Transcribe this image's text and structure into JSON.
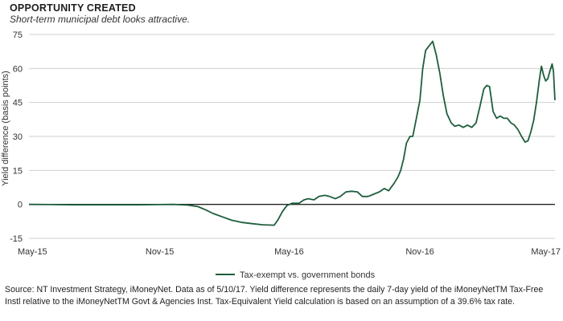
{
  "header": {
    "title": "OPPORTUNITY CREATED",
    "subtitle": "Short-term municipal debt looks attractive."
  },
  "footer": {
    "source": "Source: NT Investment Strategy, iMoneyNet. Data as of 5/10/17. Yield difference represents the daily 7-day yield of the iMoneyNetTM Tax-Free Instl relative to the iMoneyNetTM Govt & Agencies Inst. Tax-Equivalent Yield calculation is based on an assumption of a 39.6% tax rate."
  },
  "colors": {
    "line": "#1e5e3c",
    "grid": "#cfcfcf",
    "zero": "#222222"
  },
  "chart_data": {
    "type": "line",
    "title": "OPPORTUNITY CREATED",
    "subtitle": "Short-term municipal debt looks attractive.",
    "ylabel": "Yield difference (basis points)",
    "xlabel": "",
    "ylim": [
      -15,
      75
    ],
    "yticks": [
      -15,
      0,
      15,
      30,
      45,
      60,
      75
    ],
    "xlim": [
      "2015-05-01",
      "2017-05-10"
    ],
    "xticks": [
      {
        "date": "2015-05-01",
        "label": "May-15"
      },
      {
        "date": "2015-11-01",
        "label": "Nov-15"
      },
      {
        "date": "2016-05-01",
        "label": "May-16"
      },
      {
        "date": "2016-11-01",
        "label": "Nov-16"
      },
      {
        "date": "2017-05-01",
        "label": "May-17"
      }
    ],
    "grid": "horizontal",
    "legend_position": "bottom-center",
    "series": [
      {
        "name": "Tax-exempt vs. government bonds",
        "color": "#1e5e3c",
        "points": [
          [
            "2015-05-01",
            0
          ],
          [
            "2015-06-01",
            -0.1
          ],
          [
            "2015-07-01",
            -0.2
          ],
          [
            "2015-08-01",
            -0.2
          ],
          [
            "2015-09-01",
            -0.2
          ],
          [
            "2015-10-01",
            -0.2
          ],
          [
            "2015-11-01",
            -0.1
          ],
          [
            "2015-11-20",
            0
          ],
          [
            "2015-12-10",
            -0.3
          ],
          [
            "2015-12-25",
            -1
          ],
          [
            "2016-01-05",
            -2.5
          ],
          [
            "2016-01-15",
            -4
          ],
          [
            "2016-01-28",
            -5.5
          ],
          [
            "2016-02-10",
            -7
          ],
          [
            "2016-02-25",
            -8
          ],
          [
            "2016-03-10",
            -8.5
          ],
          [
            "2016-03-25",
            -9
          ],
          [
            "2016-04-10",
            -9.2
          ],
          [
            "2016-04-15",
            -7
          ],
          [
            "2016-04-22",
            -3
          ],
          [
            "2016-04-28",
            -0.5
          ],
          [
            "2016-05-05",
            0.5
          ],
          [
            "2016-05-15",
            0.5
          ],
          [
            "2016-05-22",
            2
          ],
          [
            "2016-05-28",
            2.5
          ],
          [
            "2016-06-05",
            2
          ],
          [
            "2016-06-12",
            3.5
          ],
          [
            "2016-06-20",
            4
          ],
          [
            "2016-06-27",
            3.5
          ],
          [
            "2016-07-05",
            2.5
          ],
          [
            "2016-07-12",
            3.5
          ],
          [
            "2016-07-20",
            5.5
          ],
          [
            "2016-07-28",
            5.8
          ],
          [
            "2016-08-05",
            5.5
          ],
          [
            "2016-08-12",
            3.5
          ],
          [
            "2016-08-20",
            3.5
          ],
          [
            "2016-08-28",
            4.5
          ],
          [
            "2016-09-05",
            5.5
          ],
          [
            "2016-09-12",
            7
          ],
          [
            "2016-09-18",
            6
          ],
          [
            "2016-09-25",
            9
          ],
          [
            "2016-10-01",
            12
          ],
          [
            "2016-10-05",
            15
          ],
          [
            "2016-10-09",
            20
          ],
          [
            "2016-10-13",
            27
          ],
          [
            "2016-10-18",
            30
          ],
          [
            "2016-10-22",
            30
          ],
          [
            "2016-10-27",
            38
          ],
          [
            "2016-11-01",
            46
          ],
          [
            "2016-11-05",
            60
          ],
          [
            "2016-11-09",
            68
          ],
          [
            "2016-11-14",
            70
          ],
          [
            "2016-11-19",
            72
          ],
          [
            "2016-11-24",
            66
          ],
          [
            "2016-11-29",
            58
          ],
          [
            "2016-12-04",
            48
          ],
          [
            "2016-12-09",
            40
          ],
          [
            "2016-12-15",
            36
          ],
          [
            "2016-12-20",
            34.5
          ],
          [
            "2016-12-26",
            35
          ],
          [
            "2017-01-01",
            34
          ],
          [
            "2017-01-07",
            35
          ],
          [
            "2017-01-13",
            34
          ],
          [
            "2017-01-19",
            36
          ],
          [
            "2017-01-25",
            44
          ],
          [
            "2017-01-30",
            51
          ],
          [
            "2017-02-03",
            52.5
          ],
          [
            "2017-02-07",
            52
          ],
          [
            "2017-02-12",
            41
          ],
          [
            "2017-02-17",
            38
          ],
          [
            "2017-02-22",
            39
          ],
          [
            "2017-02-27",
            38
          ],
          [
            "2017-03-04",
            38
          ],
          [
            "2017-03-09",
            36
          ],
          [
            "2017-03-14",
            35
          ],
          [
            "2017-03-19",
            33
          ],
          [
            "2017-03-24",
            30
          ],
          [
            "2017-03-29",
            27.5
          ],
          [
            "2017-04-02",
            28
          ],
          [
            "2017-04-06",
            32
          ],
          [
            "2017-04-10",
            37
          ],
          [
            "2017-04-14",
            45
          ],
          [
            "2017-04-18",
            55
          ],
          [
            "2017-04-21",
            61
          ],
          [
            "2017-04-24",
            57
          ],
          [
            "2017-04-27",
            54.5
          ],
          [
            "2017-04-30",
            55.5
          ],
          [
            "2017-05-03",
            59
          ],
          [
            "2017-05-06",
            62
          ],
          [
            "2017-05-08",
            58.5
          ],
          [
            "2017-05-09",
            52
          ],
          [
            "2017-05-10",
            46
          ]
        ]
      }
    ]
  }
}
